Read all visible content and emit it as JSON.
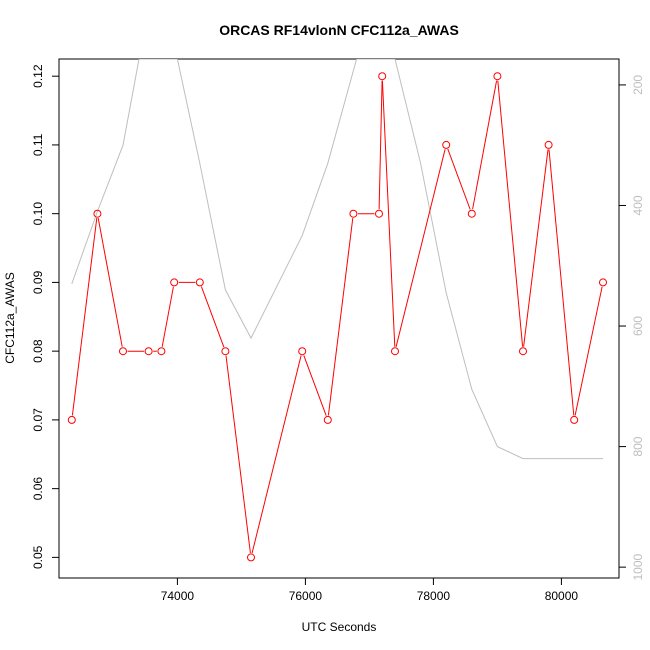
{
  "chart_data": {
    "type": "line",
    "title": "ORCAS RF14vlonN CFC112a_AWAS",
    "xlabel": "UTC Seconds",
    "ylabel": "CFC112a_AWAS",
    "xlim": [
      72150,
      80900
    ],
    "ylim": [
      0.047,
      0.1225
    ],
    "x_ticks": [
      74000,
      76000,
      78000,
      80000
    ],
    "x_tick_labels": [
      "74000",
      "76000",
      "78000",
      "80000"
    ],
    "y_ticks": [
      0.05,
      0.06,
      0.07,
      0.08,
      0.09,
      0.1,
      0.11,
      0.12
    ],
    "y_tick_labels": [
      "0.05",
      "0.06",
      "0.07",
      "0.08",
      "0.09",
      "0.10",
      "0.11",
      "0.12"
    ],
    "y2_lim": [
      1018,
      157
    ],
    "y2_ticks": [
      200,
      400,
      600,
      800,
      1000
    ],
    "y2_tick_labels": [
      "200",
      "400",
      "600",
      "800",
      "1000"
    ],
    "grid": false,
    "series": [
      {
        "color": "#ff0000",
        "axis": "left",
        "markers": true,
        "x": [
          72350,
          72750,
          73150,
          73550,
          73750,
          73950,
          74350,
          74750,
          75150,
          75950,
          76350,
          76750,
          77150,
          77200,
          77400,
          78200,
          78600,
          79000,
          79400,
          79800,
          80200,
          80650
        ],
        "y": [
          0.07,
          0.1,
          0.08,
          0.08,
          0.08,
          0.09,
          0.09,
          0.08,
          0.05,
          0.08,
          0.07,
          0.1,
          0.1,
          0.12,
          0.08,
          0.11,
          0.1,
          0.12,
          0.08,
          0.11,
          0.07,
          0.09
        ]
      },
      {
        "color": "#bebebe",
        "axis": "right",
        "markers": false,
        "x": [
          72350,
          72750,
          73150,
          73400,
          73800,
          74000,
          74350,
          74750,
          75150,
          75950,
          76350,
          76800,
          77150,
          77400,
          77800,
          78200,
          78600,
          79000,
          79400,
          79800,
          80200,
          80650
        ],
        "y": [
          530,
          410,
          300,
          157,
          157,
          157,
          330,
          540,
          620,
          450,
          330,
          157,
          157,
          157,
          330,
          545,
          705,
          800,
          820,
          820,
          820,
          820
        ]
      }
    ]
  }
}
